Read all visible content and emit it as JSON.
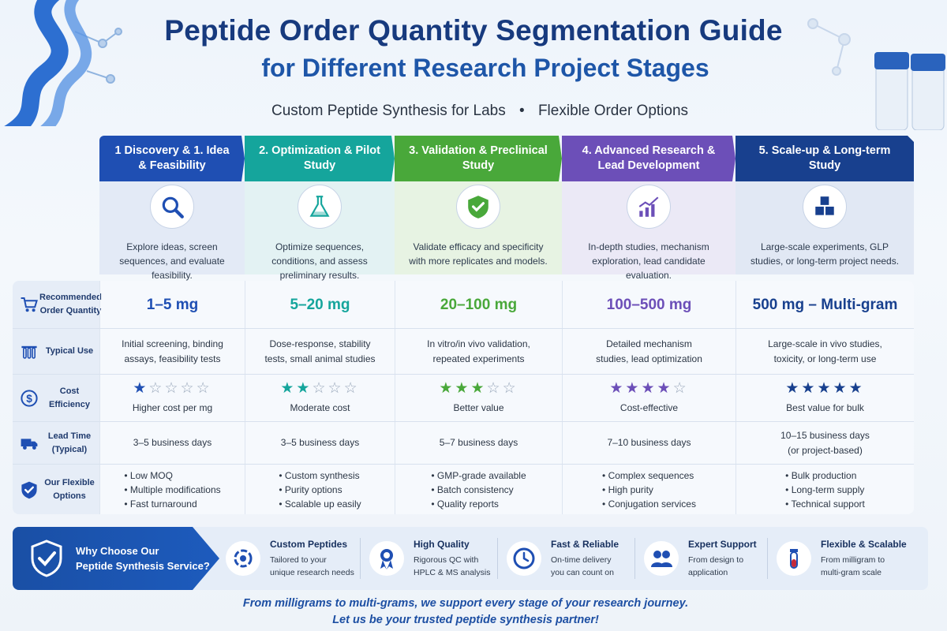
{
  "header": {
    "title_line1": "Peptide Order Quantity Segmentation Guide",
    "title_line2": "for Different Research Project Stages",
    "subtitle_left": "Custom Peptide Synthesis for Labs",
    "subtitle_dot": "•",
    "subtitle_right": "Flexible Order Options"
  },
  "stages": [
    {
      "title": "1 Discovery & 1. Idea & Feasibility",
      "icon": "magnifier-icon",
      "color": "#1f4fb3",
      "body_bg": "#e3eaf6",
      "desc": "Explore ideas, screen sequences, and evaluate feasibility."
    },
    {
      "title": "2. Optimization & Pilot Study",
      "icon": "flask-icon",
      "color": "#15a59c",
      "body_bg": "#e3f2f3",
      "desc": "Optimize sequences, conditions, and assess preliminary results."
    },
    {
      "title": "3. Validation & Preclinical Study",
      "icon": "shield-check-icon",
      "color": "#49a83a",
      "body_bg": "#e7f3e3",
      "desc": "Validate efficacy and specificity with more replicates and models."
    },
    {
      "title": "4. Advanced Research & Lead Development",
      "icon": "trend-chart-icon",
      "color": "#6c4fb8",
      "body_bg": "#ebe9f6",
      "desc": "In-depth studies, mechanism exploration, lead candidate evaluation."
    },
    {
      "title": "5. Scale-up & Long-term Study",
      "icon": "cubes-icon",
      "color": "#18408e",
      "body_bg": "#e1e8f4",
      "desc": "Large-scale experiments, GLP studies, or long-term project needs."
    }
  ],
  "rows": {
    "quantity": {
      "label": "Recommended Order Quantity",
      "icon": "cart-icon",
      "values": [
        "1–5 mg",
        "5–20 mg",
        "20–100 mg",
        "100–500 mg",
        "500 mg – Multi-gram"
      ],
      "colors": [
        "#1f4fb3",
        "#15a59c",
        "#49a83a",
        "#6c4fb8",
        "#18408e"
      ]
    },
    "typical_use": {
      "label": "Typical Use",
      "icon": "test-tubes-icon",
      "values": [
        [
          "Initial screening, binding",
          "assays, feasibility tests"
        ],
        [
          "Dose-response, stability",
          "tests, small animal studies"
        ],
        [
          "In vitro/in vivo validation,",
          "repeated experiments"
        ],
        [
          "Detailed mechanism",
          "studies, lead optimization"
        ],
        [
          "Large-scale in vivo studies,",
          "toxicity, or long-term use"
        ]
      ]
    },
    "cost_efficiency": {
      "label": "Cost Efficiency",
      "icon": "dollar-icon",
      "ratings": [
        1,
        2,
        3,
        4,
        5
      ],
      "max_rating": 5,
      "values": [
        "Higher cost per mg",
        "Moderate cost",
        "Better value",
        "Cost-effective",
        "Best value for bulk"
      ]
    },
    "lead_time": {
      "label": "Lead Time (Typical)",
      "icon": "truck-icon",
      "values": [
        [
          "3–5 business days"
        ],
        [
          "3–5 business days"
        ],
        [
          "5–7 business days"
        ],
        [
          "7–10 business days"
        ],
        [
          "10–15 business days",
          "(or project-based)"
        ]
      ]
    },
    "options": {
      "label": "Our Flexible Options",
      "icon": "shield-check-icon",
      "values": [
        [
          "Low MOQ",
          "Multiple modifications",
          "Fast turnaround"
        ],
        [
          "Custom synthesis",
          "Purity options",
          "Scalable up easily"
        ],
        [
          "GMP-grade available",
          "Batch consistency",
          "Quality reports"
        ],
        [
          "Complex sequences",
          "High purity",
          "Conjugation services"
        ],
        [
          "Bulk production",
          "Long-term supply",
          "Technical support"
        ]
      ]
    }
  },
  "why_choose": {
    "lead": "Why Choose Our Peptide Synthesis Service?",
    "lead_line1": "Why Choose Our",
    "lead_line2": "Peptide Synthesis Service?",
    "features": [
      {
        "title": "Custom Peptides",
        "line1": "Tailored to your",
        "line2": "unique research needs",
        "icon": "gear-refresh-icon"
      },
      {
        "title": "High Quality",
        "line1": "Rigorous QC with",
        "line2": "HPLC & MS analysis",
        "icon": "award-ribbon-icon"
      },
      {
        "title": "Fast & Reliable",
        "line1": "On-time delivery",
        "line2": "you can count on",
        "icon": "clock-icon"
      },
      {
        "title": "Expert Support",
        "line1": "From design to",
        "line2": "application",
        "icon": "people-icon"
      },
      {
        "title": "Flexible & Scalable",
        "line1": "From milligram to",
        "line2": "multi-gram scale",
        "icon": "vial-icon"
      }
    ]
  },
  "footer": {
    "line1": "From milligrams to multi-grams, we support every stage of your research journey.",
    "line2": "Let us be your trusted peptide synthesis partner!"
  }
}
